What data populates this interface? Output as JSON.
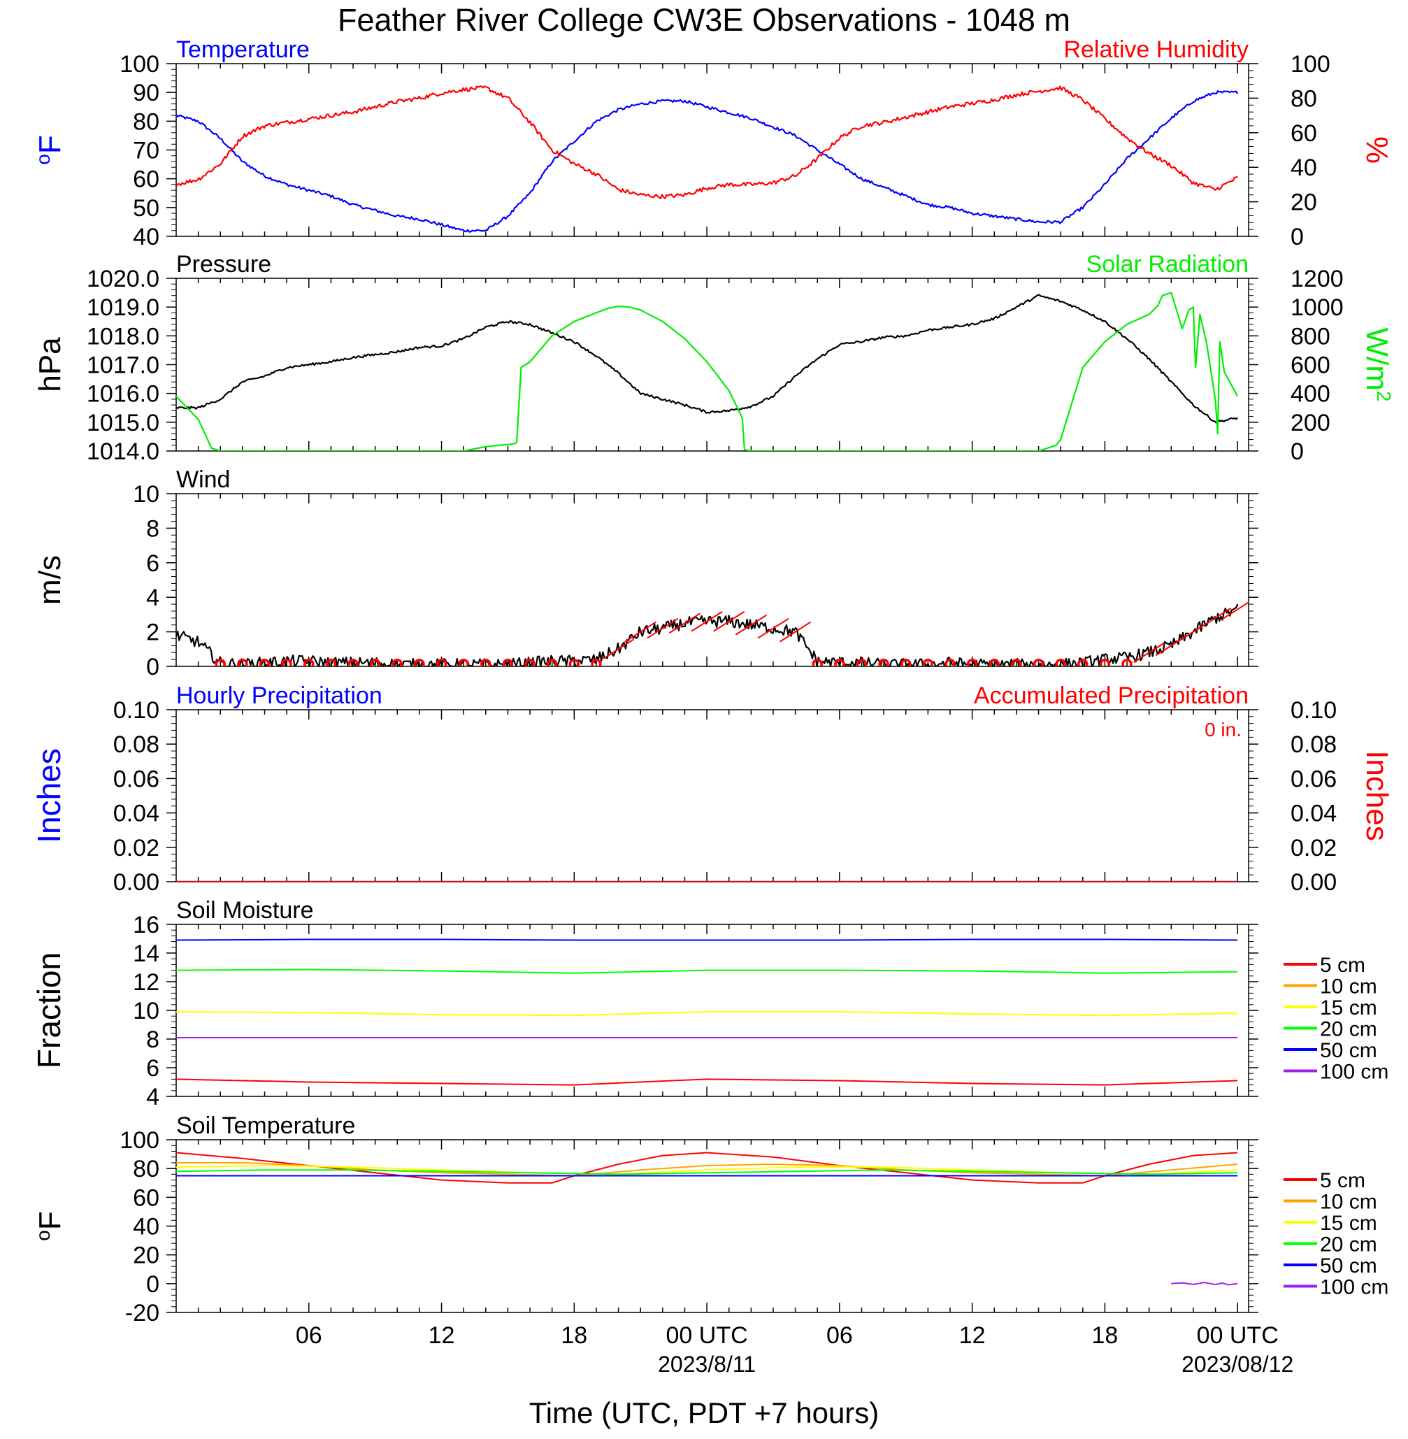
{
  "title": "Feather River College CW3E Observations - 1048 m",
  "xaxis": {
    "label": "Time (UTC, PDT +7 hours)",
    "ticks": [
      {
        "t": 6,
        "label": "06"
      },
      {
        "t": 12,
        "label": "12"
      },
      {
        "t": 18,
        "label": "18"
      },
      {
        "t": 24,
        "label": "00 UTC",
        "date": "2023/8/11"
      },
      {
        "t": 30,
        "label": "06"
      },
      {
        "t": 36,
        "label": "12"
      },
      {
        "t": 42,
        "label": "18"
      },
      {
        "t": 48,
        "label": "00 UTC",
        "date": "2023/08/12"
      }
    ]
  },
  "colors": {
    "temperature": "#0000ff",
    "humidity": "#ff0000",
    "pressure": "#000000",
    "solar": "#00ee00",
    "wind": "#000000",
    "barb": "#ff0000",
    "depth_5": "#ff0000",
    "depth_10": "#ffa500",
    "depth_15": "#ffff00",
    "depth_20": "#00ff00",
    "depth_50": "#0000ff",
    "depth_100": "#a020f0"
  },
  "chart_data": [
    {
      "type": "line",
      "panel": "temp_rh",
      "title_left": "Temperature",
      "title_right": "Relative Humidity",
      "ylabel_left": "oF",
      "ylabel_right": "%",
      "ylim_left": [
        40,
        100
      ],
      "ylim_right": [
        0,
        100
      ],
      "yticks_left": [
        "40",
        "50",
        "60",
        "70",
        "80",
        "90",
        "100"
      ],
      "yticks_right": [
        "0",
        "20",
        "40",
        "60",
        "80",
        "100"
      ],
      "series": [
        {
          "name": "Temperature",
          "axis": "left",
          "x": [
            0,
            1,
            2,
            3,
            4,
            5,
            6,
            7,
            8,
            9,
            10,
            11,
            12,
            13,
            14,
            15,
            16,
            17,
            18,
            19,
            20,
            21,
            22,
            23,
            24,
            25,
            26,
            27,
            28,
            29,
            30,
            31,
            32,
            33,
            34,
            35,
            36,
            37,
            38,
            39,
            40,
            41,
            42,
            43,
            44,
            45,
            46,
            47,
            48
          ],
          "y": [
            82,
            80,
            74,
            66,
            61,
            58,
            56,
            54,
            51,
            49,
            47,
            46,
            44,
            42,
            42,
            47,
            55,
            66,
            73,
            80,
            84,
            86,
            87,
            87,
            85,
            83,
            81,
            78,
            75,
            70,
            65,
            60,
            57,
            54,
            51,
            50,
            48,
            47,
            46,
            45,
            45,
            50,
            58,
            67,
            74,
            81,
            87,
            90,
            90
          ]
        },
        {
          "name": "Relative Humidity",
          "axis": "right",
          "x": [
            0,
            1,
            2,
            3,
            4,
            5,
            6,
            7,
            8,
            9,
            10,
            11,
            12,
            13,
            14,
            15,
            16,
            17,
            18,
            19,
            20,
            21,
            22,
            23,
            24,
            25,
            26,
            27,
            28,
            29,
            30,
            31,
            32,
            33,
            34,
            35,
            36,
            37,
            38,
            39,
            40,
            41,
            42,
            43,
            44,
            45,
            46,
            47,
            48
          ],
          "y": [
            30,
            33,
            42,
            58,
            64,
            66,
            68,
            70,
            72,
            75,
            78,
            80,
            83,
            85,
            86,
            80,
            66,
            50,
            42,
            36,
            27,
            24,
            23,
            24,
            28,
            30,
            30,
            31,
            35,
            45,
            57,
            64,
            66,
            69,
            72,
            75,
            77,
            79,
            82,
            84,
            86,
            79,
            68,
            57,
            48,
            41,
            31,
            27,
            34
          ]
        }
      ]
    },
    {
      "type": "line",
      "panel": "pressure_solar",
      "title_left": "Pressure",
      "title_right": "Solar Radiation",
      "ylabel_left": "hPa",
      "ylabel_right": "W/m2",
      "ylim_left": [
        1014.0,
        1020.0
      ],
      "ylim_right": [
        0,
        1200
      ],
      "yticks_left": [
        "1014.0",
        "1015.0",
        "1016.0",
        "1017.0",
        "1018.0",
        "1019.0",
        "1020.0"
      ],
      "yticks_right": [
        "0",
        "200",
        "400",
        "600",
        "800",
        "1000",
        "1200"
      ],
      "series": [
        {
          "name": "Pressure",
          "axis": "left",
          "x": [
            0,
            1,
            2,
            3,
            4,
            5,
            6,
            7,
            8,
            9,
            10,
            11,
            12,
            13,
            14,
            15,
            16,
            17,
            18,
            19,
            20,
            21,
            22,
            23,
            24,
            25,
            26,
            27,
            28,
            29,
            30,
            31,
            32,
            33,
            34,
            35,
            36,
            37,
            38,
            39,
            40,
            41,
            42,
            43,
            44,
            45,
            46,
            47,
            48
          ],
          "y": [
            1015.5,
            1015.5,
            1015.8,
            1016.4,
            1016.6,
            1016.9,
            1017.0,
            1017.1,
            1017.25,
            1017.35,
            1017.45,
            1017.6,
            1017.65,
            1017.9,
            1018.3,
            1018.5,
            1018.4,
            1018.1,
            1017.8,
            1017.3,
            1016.7,
            1016.0,
            1015.8,
            1015.6,
            1015.35,
            1015.4,
            1015.55,
            1015.9,
            1016.6,
            1017.2,
            1017.7,
            1017.8,
            1017.95,
            1018.0,
            1018.2,
            1018.3,
            1018.4,
            1018.6,
            1019.0,
            1019.4,
            1019.2,
            1018.9,
            1018.5,
            1017.9,
            1017.2,
            1016.4,
            1015.6,
            1015.0,
            1015.15
          ]
        },
        {
          "name": "Solar Radiation",
          "axis": "right",
          "x": [
            0,
            1,
            1.6,
            2,
            10,
            12,
            13,
            14,
            15.3,
            15.4,
            15.6,
            16,
            17,
            18,
            19,
            19.5,
            20,
            20.5,
            21,
            22,
            23,
            24,
            25,
            25.6,
            25.7,
            26,
            34,
            36,
            37,
            38,
            39,
            39.8,
            39.9,
            40,
            41,
            42,
            43,
            44,
            44.4,
            44.6,
            45,
            45.5,
            45.8,
            46,
            46.1,
            46.3,
            46.6,
            47,
            47.1,
            47.2,
            47.4,
            48
          ],
          "y": [
            380,
            220,
            20,
            0,
            0,
            0,
            0,
            30,
            50,
            60,
            580,
            620,
            800,
            900,
            960,
            990,
            1005,
            1000,
            980,
            900,
            780,
            620,
            420,
            230,
            10,
            0,
            0,
            0,
            0,
            0,
            0,
            40,
            60,
            80,
            580,
            760,
            880,
            950,
            1010,
            1080,
            1100,
            850,
            980,
            1000,
            580,
            950,
            750,
            350,
            120,
            760,
            550,
            380
          ]
        }
      ]
    },
    {
      "type": "line",
      "panel": "wind",
      "title_left": "Wind",
      "ylabel_left": "m/s",
      "ylim_left": [
        0,
        10
      ],
      "yticks_left": [
        "0",
        "2",
        "4",
        "6",
        "8",
        "10"
      ],
      "series": [
        {
          "name": "Wind",
          "axis": "left",
          "x": [
            0,
            1,
            2,
            3,
            4,
            5,
            6,
            7,
            8,
            9,
            10,
            11,
            12,
            13,
            14,
            15,
            16,
            17,
            18,
            19,
            20,
            21,
            22,
            23,
            24,
            25,
            26,
            27,
            28,
            29,
            30,
            31,
            32,
            33,
            34,
            35,
            36,
            37,
            38,
            39,
            40,
            41,
            42,
            43,
            44,
            45,
            46,
            47,
            48
          ],
          "y": [
            1.8,
            1.4,
            0.2,
            0.1,
            0.2,
            0.3,
            0.3,
            0.2,
            0.2,
            0.2,
            0.1,
            0.1,
            0.1,
            0.1,
            0.1,
            0.1,
            0.2,
            0.3,
            0.3,
            0.4,
            1.0,
            2.0,
            2.2,
            2.5,
            2.6,
            2.6,
            2.4,
            2.2,
            2.0,
            0.3,
            0.2,
            0.2,
            0.1,
            0.1,
            0.1,
            0.2,
            0.1,
            0.1,
            0.1,
            0.1,
            0.1,
            0.2,
            0.4,
            0.5,
            0.8,
            1.2,
            2.0,
            2.8,
            3.3
          ]
        }
      ]
    },
    {
      "type": "line",
      "panel": "precip",
      "title_left": "Hourly Precipitation",
      "title_right": "Accumulated Precipitation",
      "annotation": "0 in.",
      "ylabel_left": "Inches",
      "ylabel_right": "Inches",
      "ylim_left": [
        0,
        0.1
      ],
      "ylim_right": [
        0,
        0.1
      ],
      "yticks_left": [
        "0.00",
        "0.02",
        "0.04",
        "0.06",
        "0.08",
        "0.10"
      ],
      "yticks_right": [
        "0.00",
        "0.02",
        "0.04",
        "0.06",
        "0.08",
        "0.10"
      ],
      "series": [
        {
          "name": "Hourly Precipitation",
          "axis": "left",
          "x": [
            0,
            48
          ],
          "y": [
            0,
            0
          ]
        },
        {
          "name": "Accumulated Precipitation",
          "axis": "right",
          "x": [
            0,
            48
          ],
          "y": [
            0,
            0
          ]
        }
      ]
    },
    {
      "type": "line",
      "panel": "soil_moisture",
      "title_left": "Soil Moisture",
      "ylabel_left": "Fraction",
      "ylim_left": [
        4,
        16
      ],
      "yticks_left": [
        "4",
        "6",
        "8",
        "10",
        "12",
        "14",
        "16"
      ],
      "legend": [
        "5 cm",
        "10 cm",
        "15 cm",
        "20 cm",
        "50 cm",
        "100 cm"
      ],
      "series": [
        {
          "name": "50 cm",
          "axis": "left",
          "x": [
            0,
            6,
            12,
            18,
            24,
            30,
            36,
            42,
            48
          ],
          "y": [
            14.9,
            14.95,
            14.95,
            14.9,
            14.9,
            14.9,
            14.95,
            14.95,
            14.9
          ]
        },
        {
          "name": "20 cm",
          "axis": "left",
          "x": [
            0,
            6,
            12,
            18,
            24,
            30,
            36,
            42,
            48
          ],
          "y": [
            12.8,
            12.85,
            12.75,
            12.6,
            12.8,
            12.8,
            12.75,
            12.6,
            12.7
          ]
        },
        {
          "name": "15 cm",
          "axis": "left",
          "x": [
            0,
            6,
            12,
            18,
            24,
            30,
            36,
            42,
            48
          ],
          "y": [
            9.9,
            9.85,
            9.7,
            9.65,
            9.9,
            9.9,
            9.75,
            9.65,
            9.8
          ]
        },
        {
          "name": "100 cm",
          "axis": "left",
          "x": [
            0,
            48
          ],
          "y": [
            8.1,
            8.1
          ]
        },
        {
          "name": "5 cm",
          "axis": "left",
          "x": [
            0,
            6,
            12,
            18,
            24,
            30,
            36,
            42,
            48
          ],
          "y": [
            5.2,
            5.0,
            4.9,
            4.8,
            5.2,
            5.1,
            4.9,
            4.8,
            5.1
          ]
        }
      ]
    },
    {
      "type": "line",
      "panel": "soil_temperature",
      "title_left": "Soil Temperature",
      "ylabel_left": "oF",
      "ylim_left": [
        -20,
        100
      ],
      "yticks_left": [
        "-20",
        "0",
        "20",
        "40",
        "60",
        "80",
        "100"
      ],
      "legend": [
        "5 cm",
        "10 cm",
        "15 cm",
        "20 cm",
        "50 cm",
        "100 cm"
      ],
      "series": [
        {
          "name": "5 cm",
          "axis": "left",
          "x": [
            0,
            3,
            6,
            9,
            12,
            15,
            17,
            18,
            20,
            22,
            24,
            27,
            30,
            33,
            36,
            39,
            41,
            42,
            44,
            46,
            48
          ],
          "y": [
            91,
            87,
            82,
            77,
            72,
            70,
            70,
            75,
            83,
            89,
            91,
            88,
            82,
            77,
            72,
            70,
            70,
            75,
            83,
            89,
            91
          ]
        },
        {
          "name": "10 cm",
          "axis": "left",
          "x": [
            0,
            3,
            6,
            9,
            12,
            15,
            18,
            21,
            24,
            27,
            30,
            33,
            36,
            39,
            42,
            45,
            48
          ],
          "y": [
            84,
            84,
            82,
            79,
            77,
            76,
            75,
            79,
            82,
            83,
            82,
            79,
            77,
            76,
            75,
            79,
            83
          ]
        },
        {
          "name": "15 cm",
          "axis": "left",
          "x": [
            0,
            4,
            8,
            12,
            16,
            20,
            24,
            28,
            32,
            36,
            40,
            44,
            48
          ],
          "y": [
            81,
            82,
            81,
            79,
            77,
            76,
            79,
            81,
            81,
            79,
            77,
            76,
            79
          ]
        },
        {
          "name": "20 cm",
          "axis": "left",
          "x": [
            0,
            4,
            8,
            12,
            16,
            20,
            24,
            28,
            32,
            36,
            40,
            44,
            48
          ],
          "y": [
            78,
            79,
            79,
            78,
            77,
            76,
            77,
            78,
            79,
            78,
            77,
            76,
            77
          ]
        },
        {
          "name": "50 cm",
          "axis": "left",
          "x": [
            0,
            48
          ],
          "y": [
            75,
            75
          ]
        },
        {
          "name": "100 cm",
          "axis": "left",
          "x": [
            45,
            45.5,
            46,
            46.5,
            47,
            47.3,
            47.6,
            48
          ],
          "y": [
            0,
            0.5,
            -0.5,
            0.8,
            -0.6,
            0.4,
            -0.8,
            0
          ]
        }
      ]
    }
  ]
}
